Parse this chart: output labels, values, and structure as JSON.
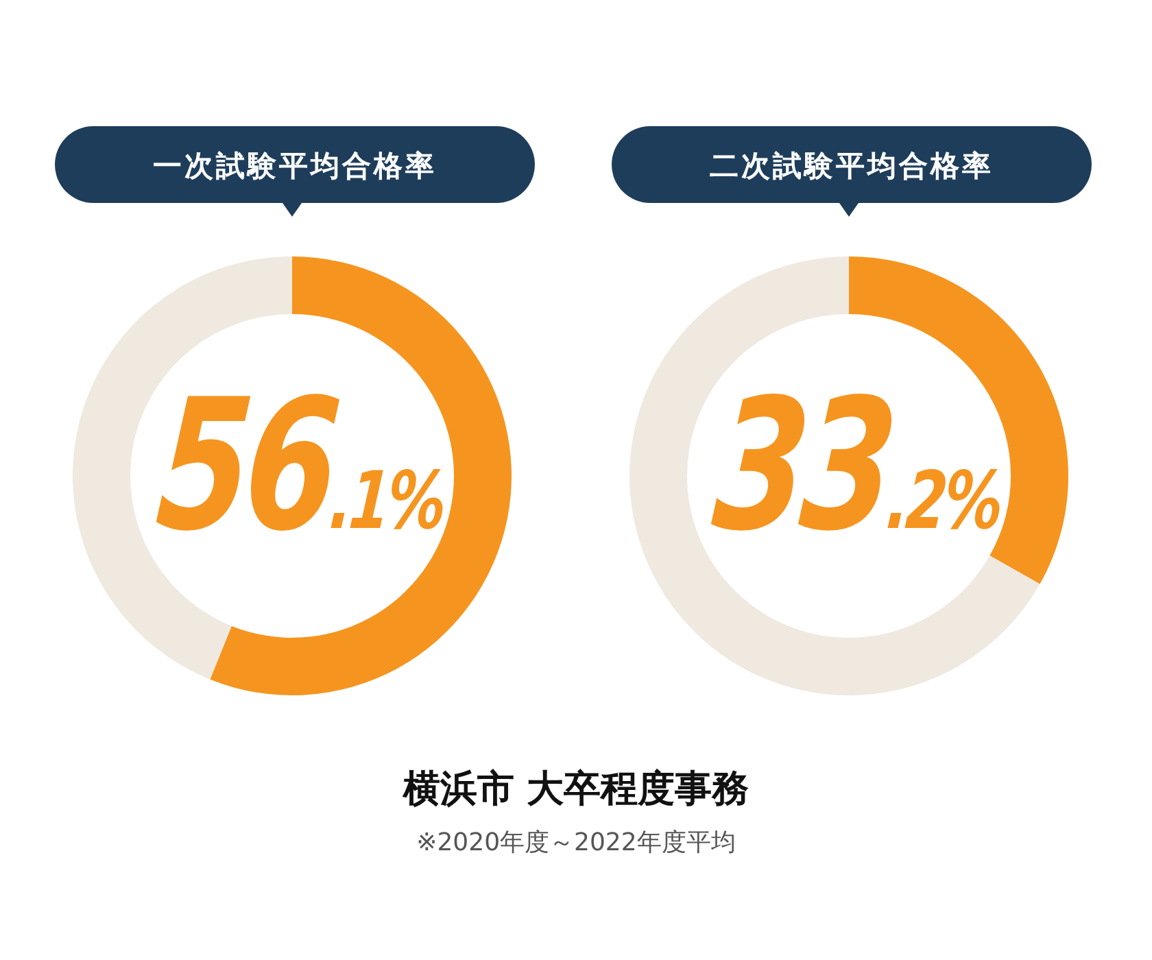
{
  "chart_data": [
    {
      "type": "donut",
      "title": "一次試験平均合格率",
      "categories": [
        null,
        null
      ],
      "values": [
        56.1,
        43.9
      ],
      "colors": [
        "#f5951f",
        "#efe9e0"
      ],
      "value_labels": [
        "56.1%",
        null
      ]
    },
    {
      "type": "donut",
      "title": "二次試験平均合格率",
      "categories": [
        null,
        null
      ],
      "values": [
        33.2,
        66.8
      ],
      "colors": [
        "#f5951f",
        "#efe9e0"
      ],
      "value_labels": [
        "33.2%",
        null
      ]
    },
    {
      "type": "other",
      "title": "横浜市 大卒程度事務",
      "subtitle": "※2020年度～2022年度平均"
    }
  ]
}
